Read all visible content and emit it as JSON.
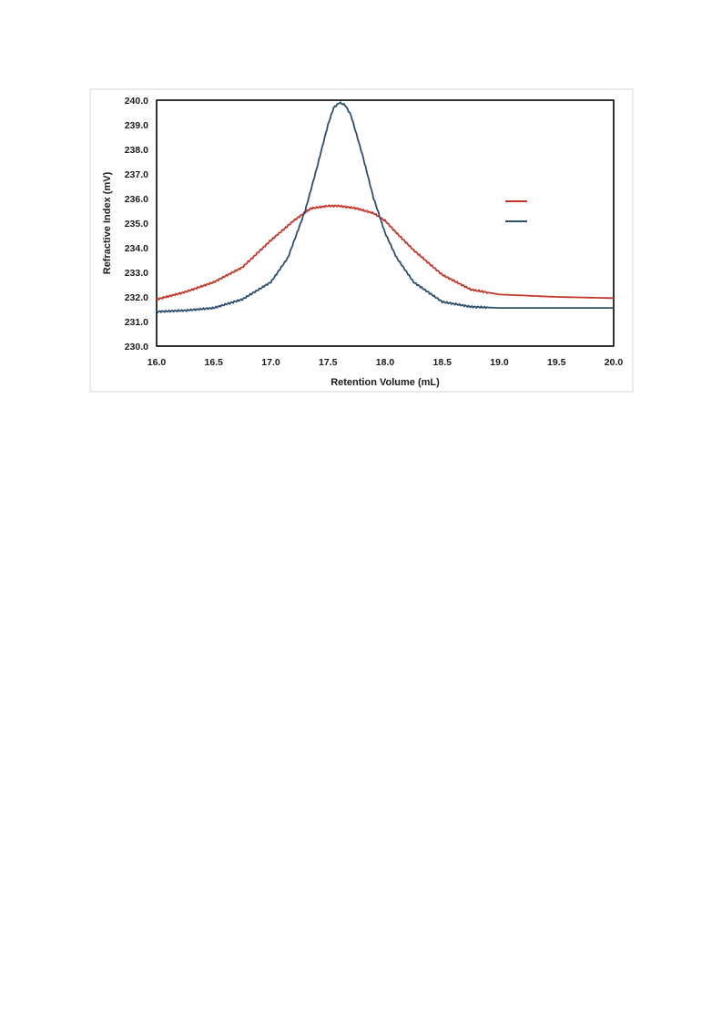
{
  "chart_data": {
    "type": "line",
    "title": "",
    "xlabel": "Retention Volume (mL)",
    "ylabel": "Refractive Index (mV)",
    "xlim": [
      16.0,
      20.0
    ],
    "ylim": [
      230.0,
      240.0
    ],
    "x_ticks": [
      "16.0",
      "16.5",
      "17.0",
      "17.5",
      "18.0",
      "18.5",
      "19.0",
      "19.5",
      "20.0"
    ],
    "y_ticks": [
      "230.0",
      "231.0",
      "232.0",
      "233.0",
      "234.0",
      "235.0",
      "236.0",
      "237.0",
      "238.0",
      "239.0",
      "240.0"
    ],
    "grid": false,
    "legend_position": "right",
    "series": [
      {
        "color": "#c0392b",
        "x": [
          16.0,
          16.25,
          16.5,
          16.75,
          17.0,
          17.2,
          17.35,
          17.5,
          17.6,
          17.75,
          17.9,
          18.0,
          18.1,
          18.25,
          18.5,
          18.75,
          19.0,
          19.5,
          20.0
        ],
        "y": [
          231.9,
          232.2,
          232.6,
          233.2,
          234.3,
          235.1,
          235.6,
          235.7,
          235.7,
          235.6,
          235.4,
          235.1,
          234.6,
          233.9,
          232.9,
          232.3,
          232.1,
          232.0,
          231.95
        ]
      },
      {
        "color": "#2e4f6e",
        "x": [
          16.0,
          16.25,
          16.5,
          16.75,
          17.0,
          17.15,
          17.3,
          17.4,
          17.5,
          17.55,
          17.6,
          17.65,
          17.7,
          17.8,
          17.9,
          18.0,
          18.1,
          18.25,
          18.5,
          18.75,
          19.0,
          19.5,
          20.0
        ],
        "y": [
          231.4,
          231.45,
          231.55,
          231.9,
          232.6,
          233.6,
          235.5,
          237.2,
          239.0,
          239.7,
          239.9,
          239.8,
          239.4,
          237.8,
          236.0,
          234.6,
          233.6,
          232.6,
          231.8,
          231.6,
          231.55,
          231.55,
          231.55
        ]
      }
    ]
  }
}
